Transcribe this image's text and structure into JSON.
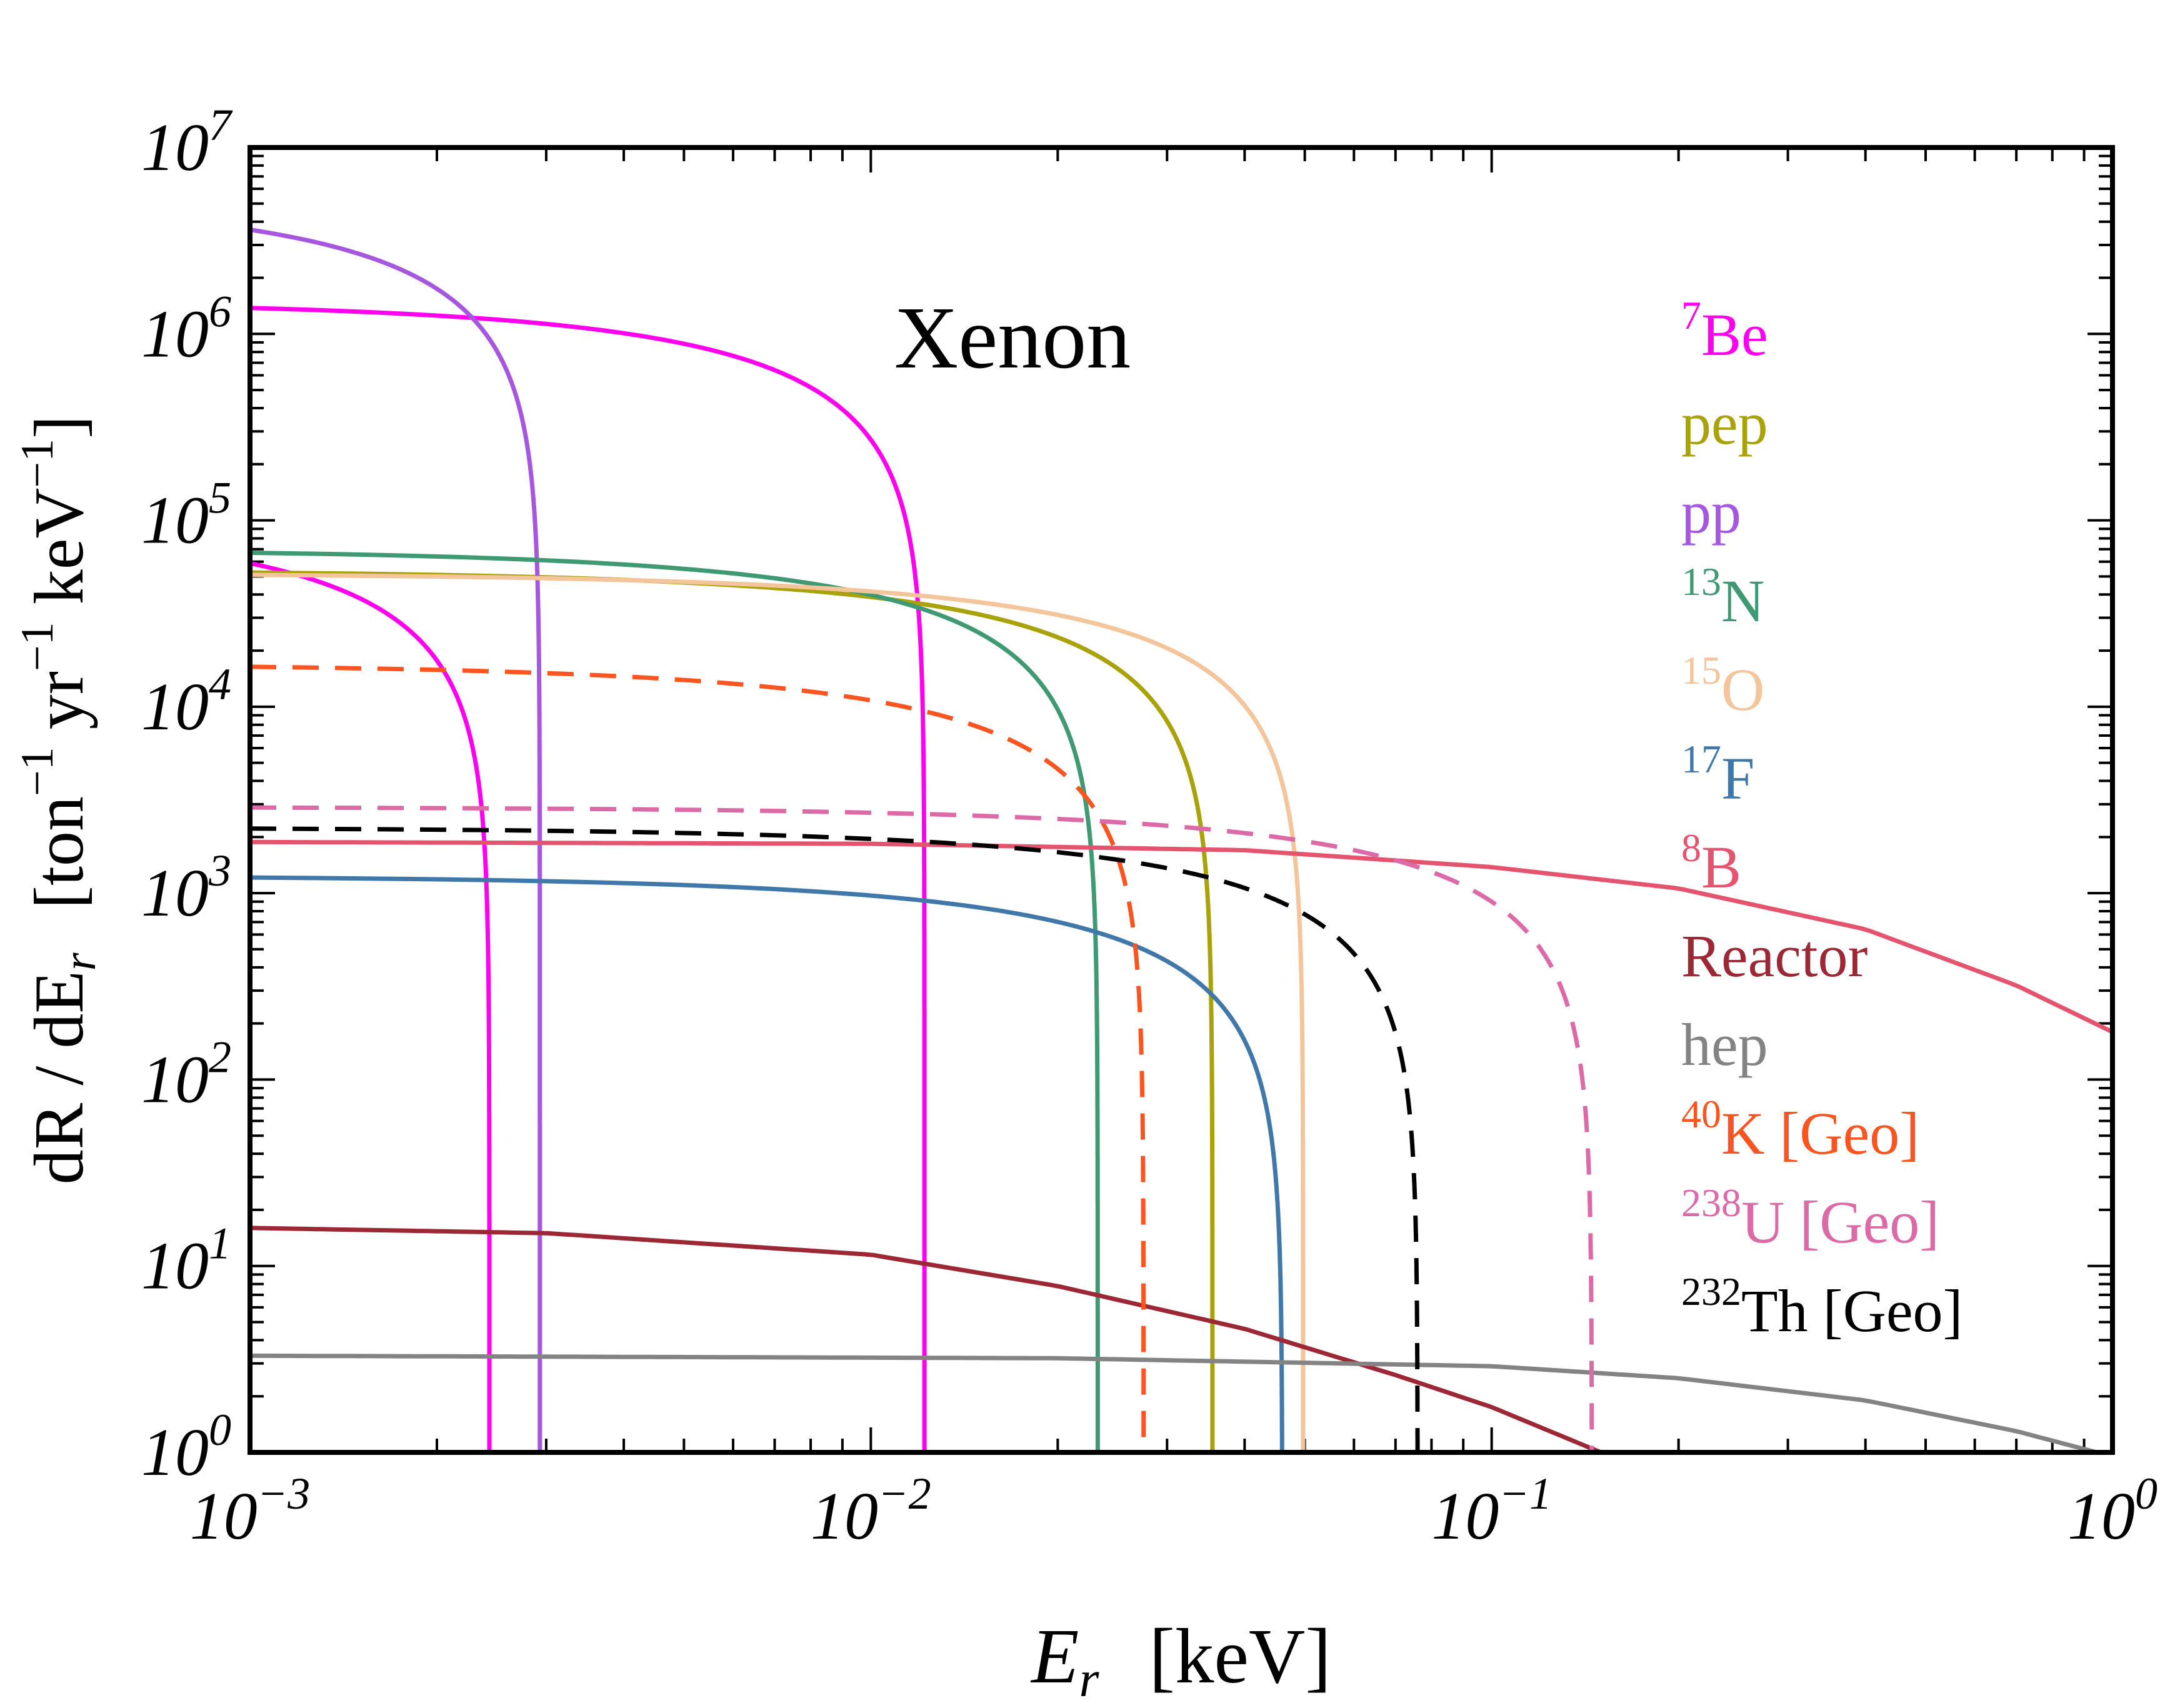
{
  "chart_data": {
    "type": "line",
    "title": "Xenon",
    "xlabel": {
      "main": "E",
      "sub": "r",
      "units": "[keV]"
    },
    "ylabel": {
      "prefix": "dR / dE",
      "sub": "r",
      "units_open": "[ton",
      "units_ton_exp": "−1",
      "units_yr": " yr",
      "units_yr_exp": "−1",
      "units_kev": " keV",
      "units_kev_exp": "−1",
      "units_close": "]"
    },
    "xscale": "log",
    "yscale": "log",
    "xlim": [
      0.001,
      1
    ],
    "ylim": [
      1,
      10000000
    ],
    "x_ticks": [
      {
        "base": "10",
        "exp": "−3",
        "value": 0.001
      },
      {
        "base": "10",
        "exp": "−2",
        "value": 0.01
      },
      {
        "base": "10",
        "exp": "−1",
        "value": 0.1
      },
      {
        "base": "10",
        "exp": "0",
        "value": 1
      }
    ],
    "y_ticks": [
      {
        "base": "10",
        "exp": "0",
        "value": 1
      },
      {
        "base": "10",
        "exp": "1",
        "value": 10
      },
      {
        "base": "10",
        "exp": "2",
        "value": 100
      },
      {
        "base": "10",
        "exp": "3",
        "value": 1000
      },
      {
        "base": "10",
        "exp": "4",
        "value": 10000
      },
      {
        "base": "10",
        "exp": "5",
        "value": 100000
      },
      {
        "base": "10",
        "exp": "6",
        "value": 1000000
      },
      {
        "base": "10",
        "exp": "7",
        "value": 10000000
      }
    ],
    "legend_position": "right",
    "series": [
      {
        "name": "7Be",
        "sup": "7",
        "label": "Be",
        "color": "#ff00ee",
        "dash": false,
        "model": "endpoint",
        "y0": 1500000,
        "emax": 0.0122
      },
      {
        "name": "7Be (low line)",
        "sup": "",
        "label": "",
        "color": "#ff00ee",
        "dash": false,
        "model": "endpoint",
        "y0": 100000,
        "emax": 0.00243,
        "in_legend": false
      },
      {
        "name": "pep",
        "sup": "",
        "label": "pep",
        "color": "#a9a20a",
        "dash": false,
        "model": "endpoint",
        "y0": 54000,
        "emax": 0.0355
      },
      {
        "name": "pp",
        "sup": "",
        "label": "pp",
        "color": "#a756e0",
        "dash": false,
        "model": "endpoint",
        "y0": 5500000,
        "emax": 0.00293
      },
      {
        "name": "13N",
        "sup": "13",
        "label": "N",
        "color": "#3f9a73",
        "dash": false,
        "model": "endpoint",
        "y0": 70000,
        "emax": 0.0232
      },
      {
        "name": "15O",
        "sup": "15",
        "label": "O",
        "color": "#f4c59b",
        "dash": false,
        "model": "endpoint",
        "y0": 52000,
        "emax": 0.0497
      },
      {
        "name": "17F",
        "sup": "17",
        "label": "F",
        "color": "#3f78a9",
        "dash": false,
        "model": "endpoint",
        "y0": 1240,
        "emax": 0.046
      },
      {
        "name": "8B",
        "sup": "8",
        "label": "B",
        "color": "#e5546e",
        "dash": false,
        "points": [
          [
            0.001,
            1880
          ],
          [
            0.01,
            1840
          ],
          [
            0.04,
            1700
          ],
          [
            0.1,
            1380
          ],
          [
            0.2,
            1060
          ],
          [
            0.4,
            640
          ],
          [
            0.7,
            320
          ],
          [
            1.0,
            180
          ]
        ]
      },
      {
        "name": "Reactor",
        "sup": "",
        "label": "Reactor",
        "color": "#9c2836",
        "dash": false,
        "points": [
          [
            0.001,
            16
          ],
          [
            0.003,
            15
          ],
          [
            0.01,
            11.5
          ],
          [
            0.02,
            7.8
          ],
          [
            0.04,
            4.6
          ],
          [
            0.07,
            2.6
          ],
          [
            0.1,
            1.75
          ],
          [
            0.15,
            1.0
          ]
        ]
      },
      {
        "name": "hep",
        "sup": "",
        "label": "hep",
        "color": "#838383",
        "dash": false,
        "points": [
          [
            0.001,
            3.3
          ],
          [
            0.02,
            3.2
          ],
          [
            0.1,
            2.9
          ],
          [
            0.2,
            2.5
          ],
          [
            0.4,
            1.9
          ],
          [
            0.7,
            1.3
          ],
          [
            1.0,
            0.95
          ]
        ]
      },
      {
        "name": "40K [Geo]",
        "sup": "40",
        "label": "K [Geo]",
        "color": "#fa5420",
        "dash": true,
        "model": "endpoint",
        "y0": 17000,
        "emax": 0.0275
      },
      {
        "name": "238U [Geo]",
        "sup": "238",
        "label": "U [Geo]",
        "color": "#dc6aa6",
        "dash": true,
        "model": "endpoint",
        "y0": 2900,
        "emax": 0.145
      },
      {
        "name": "232Th [Geo]",
        "sup": "232",
        "label": "Th [Geo]",
        "color": "#000000",
        "dash": true,
        "model": "endpoint",
        "y0": 2250,
        "emax": 0.076
      }
    ]
  }
}
